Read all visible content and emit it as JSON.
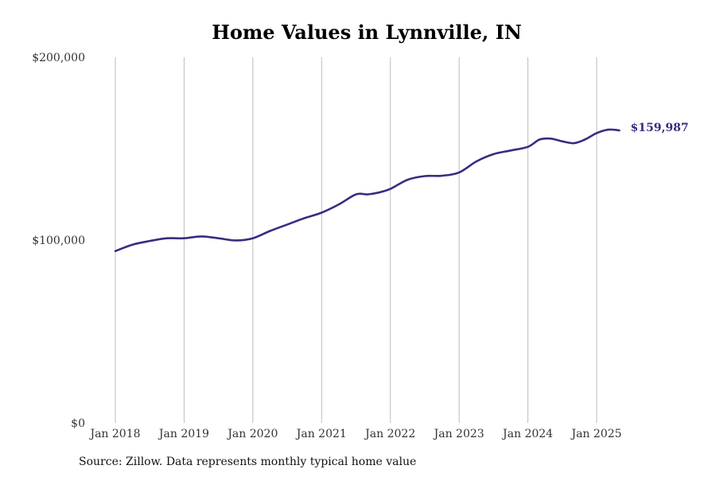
{
  "chart_data": {
    "type": "line",
    "title": "Home Values in Lynnville, IN",
    "xlabel": "",
    "ylabel": "",
    "ylim": [
      0,
      200000
    ],
    "y_ticks": [
      {
        "value": 0,
        "label": "$0"
      },
      {
        "value": 100000,
        "label": "$100,000"
      },
      {
        "value": 200000,
        "label": "$200,000"
      }
    ],
    "x_ticks": [
      {
        "value": 2018,
        "label": "Jan 2018"
      },
      {
        "value": 2019,
        "label": "Jan 2019"
      },
      {
        "value": 2020,
        "label": "Jan 2020"
      },
      {
        "value": 2021,
        "label": "Jan 2021"
      },
      {
        "value": 2022,
        "label": "Jan 2022"
      },
      {
        "value": 2023,
        "label": "Jan 2023"
      },
      {
        "value": 2024,
        "label": "Jan 2024"
      },
      {
        "value": 2025,
        "label": "Jan 2025"
      }
    ],
    "xlim": [
      2018,
      2025.33
    ],
    "grid": "vertical",
    "line_color": "#372d80",
    "end_label": "$159,987",
    "series": [
      {
        "x": [
          2018.0,
          2018.25,
          2018.5,
          2018.75,
          2019.0,
          2019.25,
          2019.5,
          2019.75,
          2020.0,
          2020.25,
          2020.5,
          2020.75,
          2021.0,
          2021.25,
          2021.5,
          2021.67,
          2021.83,
          2022.0,
          2022.25,
          2022.5,
          2022.75,
          2023.0,
          2023.25,
          2023.5,
          2023.75,
          2024.0,
          2024.17,
          2024.33,
          2024.5,
          2024.67,
          2024.83,
          2025.0,
          2025.17,
          2025.33
        ],
        "y": [
          94000,
          97500,
          99500,
          101000,
          101000,
          102000,
          101000,
          99800,
          101000,
          105000,
          108500,
          112000,
          115000,
          119500,
          125000,
          125000,
          126000,
          128000,
          133000,
          135000,
          135200,
          137000,
          143000,
          147000,
          149000,
          151000,
          155000,
          155500,
          154000,
          153000,
          155000,
          158500,
          160400,
          159987
        ]
      }
    ]
  },
  "source_note": "Source: Zillow. Data represents monthly typical home value"
}
